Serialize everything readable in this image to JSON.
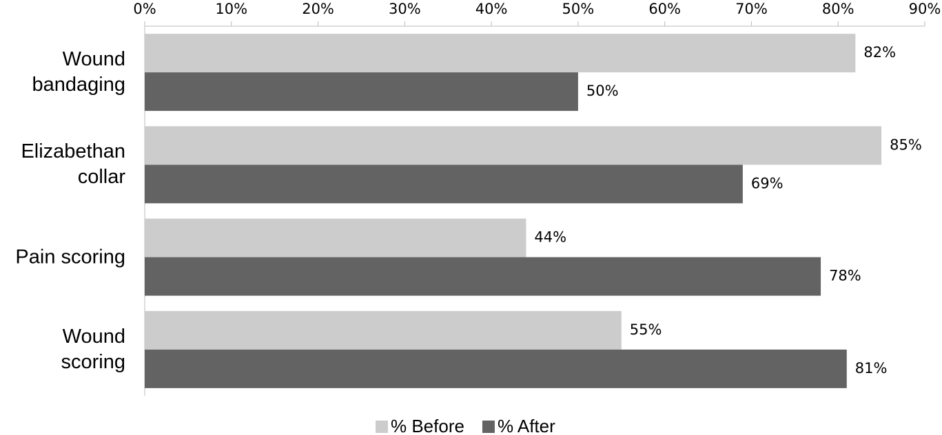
{
  "chart_data": {
    "type": "hbar",
    "categories": [
      "Wound bandaging",
      "Elizabethan collar",
      "Pain scoring",
      "Wound scoring"
    ],
    "series": [
      {
        "name": "% Before",
        "color": "#cccccc",
        "values": [
          82,
          85,
          44,
          55
        ],
        "value_labels": [
          "82%",
          "85%",
          "44%",
          "55%"
        ]
      },
      {
        "name": "% After",
        "color": "#636363",
        "values": [
          50,
          69,
          78,
          81
        ],
        "value_labels": [
          "50%",
          "69%",
          "78%",
          "81%"
        ]
      }
    ],
    "xlim": [
      0,
      90
    ],
    "xticks": [
      {
        "value": 0,
        "label": "0%"
      },
      {
        "value": 10,
        "label": "10%"
      },
      {
        "value": 20,
        "label": "20%"
      },
      {
        "value": 30,
        "label": "30%"
      },
      {
        "value": 40,
        "label": "40%"
      },
      {
        "value": 50,
        "label": "50%"
      },
      {
        "value": 60,
        "label": "60%"
      },
      {
        "value": 70,
        "label": "70%"
      },
      {
        "value": 80,
        "label": "80%"
      },
      {
        "value": 90,
        "label": "90%"
      }
    ],
    "legend": "bottom"
  }
}
